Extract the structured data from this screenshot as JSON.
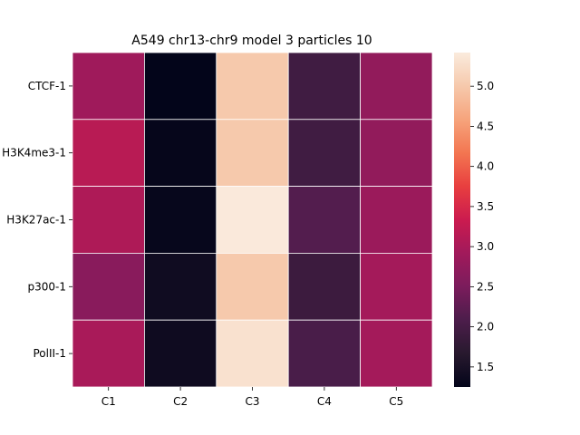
{
  "chart_data": {
    "type": "heatmap",
    "title": "A549 chr13-chr9 model 3 particles 10",
    "xlabel": "",
    "ylabel": "",
    "columns": [
      "C1",
      "C2",
      "C3",
      "C4",
      "C5"
    ],
    "rows": [
      "CTCF-1",
      "H3K4me3-1",
      "H3K27ac-1",
      "p300-1",
      "PolII-1"
    ],
    "values": [
      [
        2.9,
        1.25,
        5.0,
        1.95,
        2.75
      ],
      [
        3.15,
        1.28,
        5.0,
        1.95,
        2.75
      ],
      [
        3.05,
        1.3,
        5.4,
        2.15,
        2.85
      ],
      [
        2.65,
        1.4,
        5.0,
        1.9,
        2.95
      ],
      [
        3.0,
        1.38,
        5.3,
        2.05,
        2.95
      ]
    ],
    "colorbar": {
      "min": 1.25,
      "max": 5.42,
      "ticks": [
        1.5,
        2.0,
        2.5,
        3.0,
        3.5,
        4.0,
        4.5,
        5.0
      ],
      "tick_labels": [
        "1.5",
        "2.0",
        "2.5",
        "3.0",
        "3.5",
        "4.0",
        "4.5",
        "5.0"
      ]
    },
    "colormap": [
      "#03051a",
      "#28192e",
      "#4c1d4b",
      "#7b1c5c",
      "#a11a5b",
      "#cb1b4f",
      "#e83f3f",
      "#f37651",
      "#f6a47c",
      "#f6c9ac",
      "#faebdd"
    ],
    "grid": false,
    "cell_border_color": "#ffffff"
  }
}
